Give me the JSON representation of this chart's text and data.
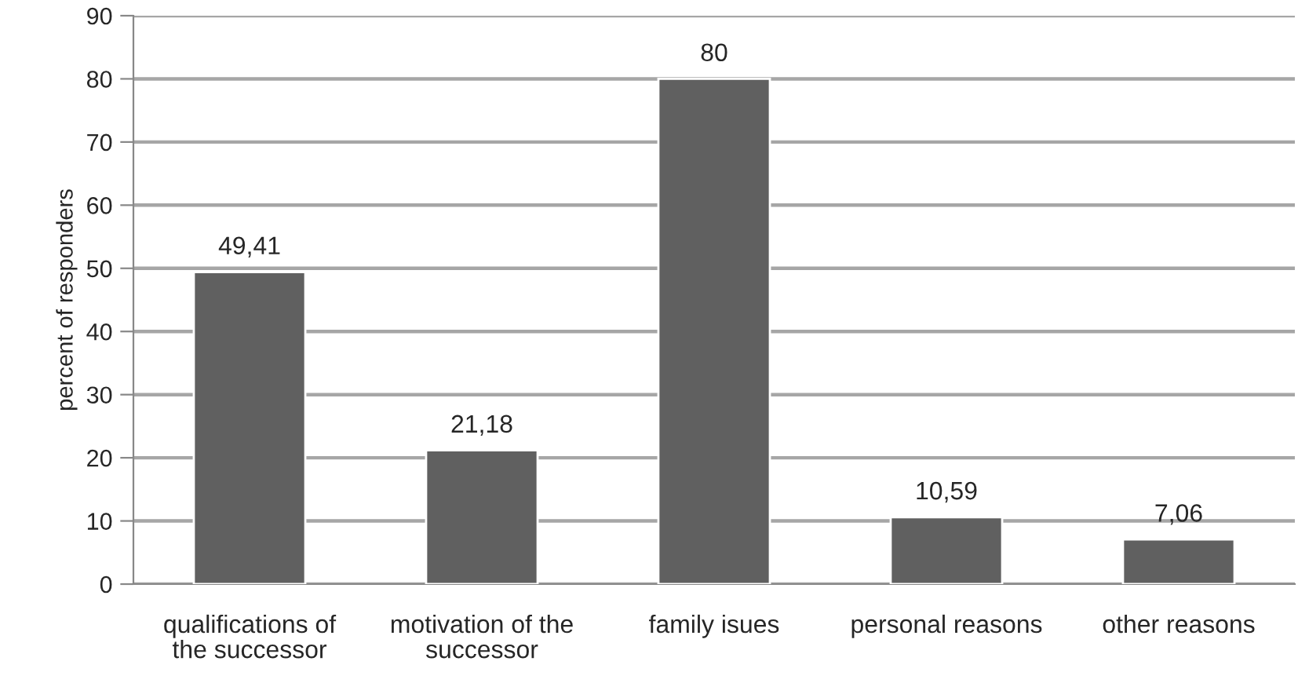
{
  "chart_data": {
    "type": "bar",
    "ylabel": "percent of responders",
    "categories": [
      "qualifications of\nthe successor",
      "motivation of the\nsuccessor",
      "family isues",
      "personal reasons",
      "other reasons"
    ],
    "values": [
      49.41,
      21.18,
      80,
      10.59,
      7.06
    ],
    "value_labels": [
      "49,41",
      "21,18",
      "80",
      "10,59",
      "7,06"
    ],
    "color": "#606060",
    "ylim": [
      0,
      90
    ],
    "yticks": [
      0,
      10,
      20,
      30,
      40,
      50,
      60,
      70,
      80,
      90
    ],
    "grid": "y",
    "legend": false
  }
}
